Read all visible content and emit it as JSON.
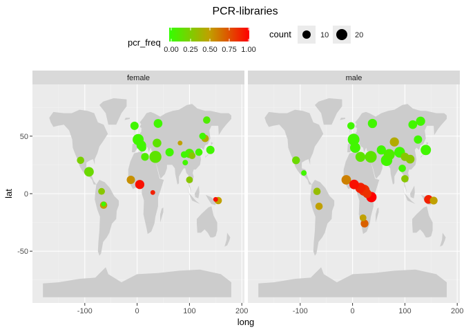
{
  "chart_data": {
    "type": "scatter",
    "title": "PCR-libraries",
    "xlabel": "long",
    "ylabel": "lat",
    "xlim": [
      -200,
      205
    ],
    "ylim": [
      -95,
      95
    ],
    "xticks": [
      -100,
      0,
      100,
      200
    ],
    "yticks": [
      -50,
      0,
      50
    ],
    "facet_labels": [
      "female",
      "male"
    ],
    "colors": {
      "low": "#33ff00",
      "high": "#ff0000",
      "panel_bg": "#ebebeb",
      "land": "#cccccc",
      "strip_bg": "#d9d9d9"
    },
    "color_legend": {
      "title": "pcr_freq",
      "ticks": [
        "0.00",
        "0.25",
        "0.50",
        "0.75",
        "1.00"
      ]
    },
    "size_legend": {
      "title": "count",
      "entries": [
        {
          "label": "10",
          "value": 10
        },
        {
          "label": "20",
          "value": 20
        }
      ]
    },
    "facets": [
      {
        "name": "female",
        "points": [
          {
            "long": -5,
            "lat": 59,
            "count": 9,
            "pcr_freq": 0.05
          },
          {
            "long": 40,
            "lat": 61,
            "count": 10,
            "pcr_freq": 0.05
          },
          {
            "long": 133,
            "lat": 64,
            "count": 7,
            "pcr_freq": 0.1
          },
          {
            "long": -108,
            "lat": 29,
            "count": 7,
            "pcr_freq": 0.25
          },
          {
            "long": -92,
            "lat": 19,
            "count": 12,
            "pcr_freq": 0.2
          },
          {
            "long": -12,
            "lat": 12,
            "count": 9,
            "pcr_freq": 0.55
          },
          {
            "long": 5,
            "lat": 8,
            "count": 11,
            "pcr_freq": 0.95
          },
          {
            "long": 30,
            "lat": 1,
            "count": 3,
            "pcr_freq": 0.9
          },
          {
            "long": 2,
            "lat": 47,
            "count": 16,
            "pcr_freq": 0.05
          },
          {
            "long": 8,
            "lat": 42,
            "count": 12,
            "pcr_freq": 0.05
          },
          {
            "long": 10,
            "lat": 40,
            "count": 8,
            "pcr_freq": 0.05
          },
          {
            "long": 38,
            "lat": 44,
            "count": 10,
            "pcr_freq": 0.15
          },
          {
            "long": 15,
            "lat": 32,
            "count": 8,
            "pcr_freq": 0.1
          },
          {
            "long": 35,
            "lat": 32,
            "count": 19,
            "pcr_freq": 0.15
          },
          {
            "long": 62,
            "lat": 36,
            "count": 9,
            "pcr_freq": 0.05
          },
          {
            "long": 82,
            "lat": 44,
            "count": 3,
            "pcr_freq": 0.5
          },
          {
            "long": 90,
            "lat": 34,
            "count": 6,
            "pcr_freq": 0.05
          },
          {
            "long": 100,
            "lat": 35,
            "count": 11,
            "pcr_freq": 0.1
          },
          {
            "long": 105,
            "lat": 33,
            "count": 6,
            "pcr_freq": 0.3
          },
          {
            "long": 118,
            "lat": 36,
            "count": 7,
            "pcr_freq": 0.05
          },
          {
            "long": 125,
            "lat": 50,
            "count": 6,
            "pcr_freq": 0.05
          },
          {
            "long": 130,
            "lat": 48,
            "count": 7,
            "pcr_freq": 0.45
          },
          {
            "long": 140,
            "lat": 38,
            "count": 9,
            "pcr_freq": 0.05
          },
          {
            "long": 92,
            "lat": 27,
            "count": 4,
            "pcr_freq": 0.05
          },
          {
            "long": 100,
            "lat": 12,
            "count": 6,
            "pcr_freq": 0.3
          },
          {
            "long": 150,
            "lat": -5,
            "count": 3,
            "pcr_freq": 0.95
          },
          {
            "long": 155,
            "lat": -6,
            "count": 7,
            "pcr_freq": 0.5
          },
          {
            "long": -68,
            "lat": 2,
            "count": 6,
            "pcr_freq": 0.3
          },
          {
            "long": -64,
            "lat": -10,
            "count": 7,
            "pcr_freq": 0.5
          },
          {
            "long": -64,
            "lat": -9,
            "count": 3,
            "pcr_freq": 0.05
          }
        ]
      },
      {
        "name": "male",
        "points": [
          {
            "long": -3,
            "lat": 59,
            "count": 7,
            "pcr_freq": 0.05
          },
          {
            "long": 38,
            "lat": 61,
            "count": 11,
            "pcr_freq": 0.05
          },
          {
            "long": 130,
            "lat": 63,
            "count": 11,
            "pcr_freq": 0.05
          },
          {
            "long": 115,
            "lat": 60,
            "count": 10,
            "pcr_freq": 0.05
          },
          {
            "long": -108,
            "lat": 29,
            "count": 8,
            "pcr_freq": 0.2
          },
          {
            "long": -93,
            "lat": 18,
            "count": 4,
            "pcr_freq": 0.05
          },
          {
            "long": -12,
            "lat": 12,
            "count": 12,
            "pcr_freq": 0.6
          },
          {
            "long": 3,
            "lat": 8,
            "count": 12,
            "pcr_freq": 0.95
          },
          {
            "long": 15,
            "lat": 5,
            "count": 14,
            "pcr_freq": 0.9
          },
          {
            "long": 22,
            "lat": 3,
            "count": 16,
            "pcr_freq": 0.85
          },
          {
            "long": 28,
            "lat": 0,
            "count": 10,
            "pcr_freq": 0.85
          },
          {
            "long": 36,
            "lat": -3,
            "count": 14,
            "pcr_freq": 1.0
          },
          {
            "long": 20,
            "lat": -21,
            "count": 6,
            "pcr_freq": 0.5
          },
          {
            "long": 23,
            "lat": -26,
            "count": 8,
            "pcr_freq": 0.7
          },
          {
            "long": 2,
            "lat": 47,
            "count": 18,
            "pcr_freq": 0.05
          },
          {
            "long": 5,
            "lat": 40,
            "count": 14,
            "pcr_freq": 0.05
          },
          {
            "long": 15,
            "lat": 32,
            "count": 13,
            "pcr_freq": 0.15
          },
          {
            "long": 35,
            "lat": 32,
            "count": 18,
            "pcr_freq": 0.15
          },
          {
            "long": 55,
            "lat": 38,
            "count": 11,
            "pcr_freq": 0.05
          },
          {
            "long": 70,
            "lat": 34,
            "count": 16,
            "pcr_freq": 0.1
          },
          {
            "long": 65,
            "lat": 29,
            "count": 17,
            "pcr_freq": 0.05
          },
          {
            "long": 80,
            "lat": 45,
            "count": 11,
            "pcr_freq": 0.45
          },
          {
            "long": 90,
            "lat": 36,
            "count": 15,
            "pcr_freq": 0.05
          },
          {
            "long": 100,
            "lat": 32,
            "count": 9,
            "pcr_freq": 0.3
          },
          {
            "long": 110,
            "lat": 30,
            "count": 10,
            "pcr_freq": 0.3
          },
          {
            "long": 125,
            "lat": 47,
            "count": 9,
            "pcr_freq": 0.05
          },
          {
            "long": 140,
            "lat": 38,
            "count": 14,
            "pcr_freq": 0.05
          },
          {
            "long": 100,
            "lat": 13,
            "count": 7,
            "pcr_freq": 0.3
          },
          {
            "long": 95,
            "lat": 22,
            "count": 7,
            "pcr_freq": 0.05
          },
          {
            "long": 145,
            "lat": -5,
            "count": 10,
            "pcr_freq": 0.9
          },
          {
            "long": 155,
            "lat": -6,
            "count": 8,
            "pcr_freq": 0.5
          },
          {
            "long": -68,
            "lat": 2,
            "count": 7,
            "pcr_freq": 0.35
          },
          {
            "long": -64,
            "lat": -11,
            "count": 7,
            "pcr_freq": 0.5
          }
        ]
      }
    ]
  }
}
